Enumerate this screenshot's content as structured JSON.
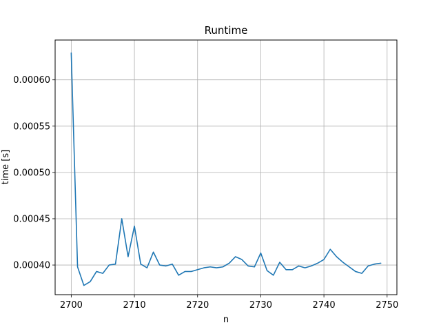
{
  "chart_data": {
    "type": "line",
    "title": "Runtime",
    "xlabel": "n",
    "ylabel": "time [s]",
    "xlim": [
      2697.45,
      2751.55
    ],
    "ylim": [
      0.000368,
      0.000643
    ],
    "xticks": [
      2700,
      2710,
      2720,
      2730,
      2740,
      2750
    ],
    "yticks": [
      0.0004,
      0.00045,
      0.0005,
      0.00055,
      0.0006
    ],
    "ytick_labels": [
      "0.00040",
      "0.00045",
      "0.00050",
      "0.00055",
      "0.00060"
    ],
    "grid": true,
    "series": [
      {
        "color": "#1f77b4",
        "x": [
          2700,
          2701,
          2702,
          2703,
          2704,
          2705,
          2706,
          2707,
          2708,
          2709,
          2710,
          2711,
          2712,
          2713,
          2714,
          2715,
          2716,
          2717,
          2718,
          2719,
          2720,
          2721,
          2722,
          2723,
          2724,
          2725,
          2726,
          2727,
          2728,
          2729,
          2730,
          2731,
          2732,
          2733,
          2734,
          2735,
          2736,
          2737,
          2738,
          2739,
          2740,
          2741,
          2742,
          2743,
          2744,
          2745,
          2746,
          2747,
          2748,
          2749
        ],
        "values": [
          0.000629,
          0.000398,
          0.000378,
          0.000382,
          0.000393,
          0.000391,
          0.0004,
          0.000401,
          0.00045,
          0.000409,
          0.000442,
          0.000401,
          0.000397,
          0.000414,
          0.0004,
          0.000399,
          0.000401,
          0.000389,
          0.000393,
          0.000393,
          0.000395,
          0.000397,
          0.000398,
          0.000397,
          0.000398,
          0.000402,
          0.000409,
          0.000406,
          0.000399,
          0.000398,
          0.000413,
          0.000394,
          0.000389,
          0.000403,
          0.000395,
          0.000395,
          0.000399,
          0.000397,
          0.000399,
          0.000402,
          0.000406,
          0.000417,
          0.000409,
          0.000403,
          0.000398,
          0.000393,
          0.000391,
          0.000399,
          0.000401,
          0.000402
        ]
      }
    ]
  }
}
